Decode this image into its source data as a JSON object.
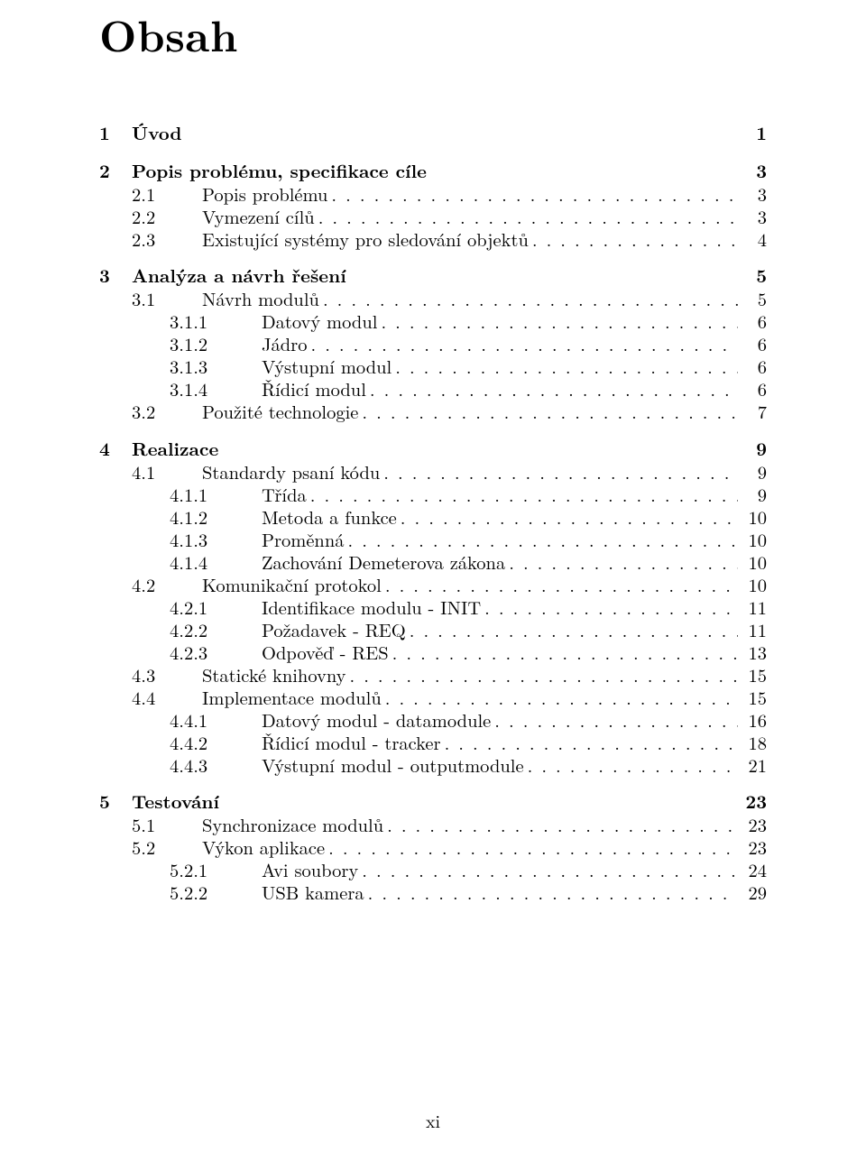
{
  "title": "Obsah",
  "footer": "xi",
  "entries": [
    {
      "level": 1,
      "num": "1",
      "text": "Úvod",
      "page": "1",
      "first": true
    },
    {
      "level": 1,
      "num": "2",
      "text": "Popis problému, specifikace cíle",
      "page": "3"
    },
    {
      "level": 2,
      "num": "2.1",
      "text": "Popis problému",
      "page": "3"
    },
    {
      "level": 2,
      "num": "2.2",
      "text": "Vymezení cílů",
      "page": "3"
    },
    {
      "level": 2,
      "num": "2.3",
      "text": "Existující systémy pro sledování objektů",
      "page": "4"
    },
    {
      "level": 1,
      "num": "3",
      "text": "Analýza a návrh řešení",
      "page": "5"
    },
    {
      "level": 2,
      "num": "3.1",
      "text": "Návrh modulů",
      "page": "5"
    },
    {
      "level": 3,
      "num": "3.1.1",
      "text": "Datový modul",
      "page": "6"
    },
    {
      "level": 3,
      "num": "3.1.2",
      "text": "Jádro",
      "page": "6"
    },
    {
      "level": 3,
      "num": "3.1.3",
      "text": "Výstupní modul",
      "page": "6"
    },
    {
      "level": 3,
      "num": "3.1.4",
      "text": "Řídicí modul",
      "page": "6"
    },
    {
      "level": 2,
      "num": "3.2",
      "text": "Použité technologie",
      "page": "7"
    },
    {
      "level": 1,
      "num": "4",
      "text": "Realizace",
      "page": "9"
    },
    {
      "level": 2,
      "num": "4.1",
      "text": "Standardy psaní kódu",
      "page": "9"
    },
    {
      "level": 3,
      "num": "4.1.1",
      "text": "Třída",
      "page": "9"
    },
    {
      "level": 3,
      "num": "4.1.2",
      "text": "Metoda a funkce",
      "page": "10"
    },
    {
      "level": 3,
      "num": "4.1.3",
      "text": "Proměnná",
      "page": "10"
    },
    {
      "level": 3,
      "num": "4.1.4",
      "text": "Zachování Demeterova zákona",
      "page": "10"
    },
    {
      "level": 2,
      "num": "4.2",
      "text": "Komunikační protokol",
      "page": "10"
    },
    {
      "level": 3,
      "num": "4.2.1",
      "text": "Identifikace modulu - INIT",
      "page": "11"
    },
    {
      "level": 3,
      "num": "4.2.2",
      "text": "Požadavek - REQ",
      "page": "11"
    },
    {
      "level": 3,
      "num": "4.2.3",
      "text": "Odpověď - RES",
      "page": "13"
    },
    {
      "level": 2,
      "num": "4.3",
      "text": "Statické knihovny",
      "page": "15"
    },
    {
      "level": 2,
      "num": "4.4",
      "text": "Implementace modulů",
      "page": "15"
    },
    {
      "level": 3,
      "num": "4.4.1",
      "text": "Datový modul - datamodule",
      "page": "16"
    },
    {
      "level": 3,
      "num": "4.4.2",
      "text": "Řídicí modul - tracker",
      "page": "18"
    },
    {
      "level": 3,
      "num": "4.4.3",
      "text": "Výstupní modul - outputmodule",
      "page": "21"
    },
    {
      "level": 1,
      "num": "5",
      "text": "Testování",
      "page": "23"
    },
    {
      "level": 2,
      "num": "5.1",
      "text": "Synchronizace modulů",
      "page": "23"
    },
    {
      "level": 2,
      "num": "5.2",
      "text": "Výkon aplikace",
      "page": "23"
    },
    {
      "level": 3,
      "num": "5.2.1",
      "text": "Avi soubory",
      "page": "24"
    },
    {
      "level": 3,
      "num": "5.2.2",
      "text": "USB kamera",
      "page": "29"
    }
  ]
}
